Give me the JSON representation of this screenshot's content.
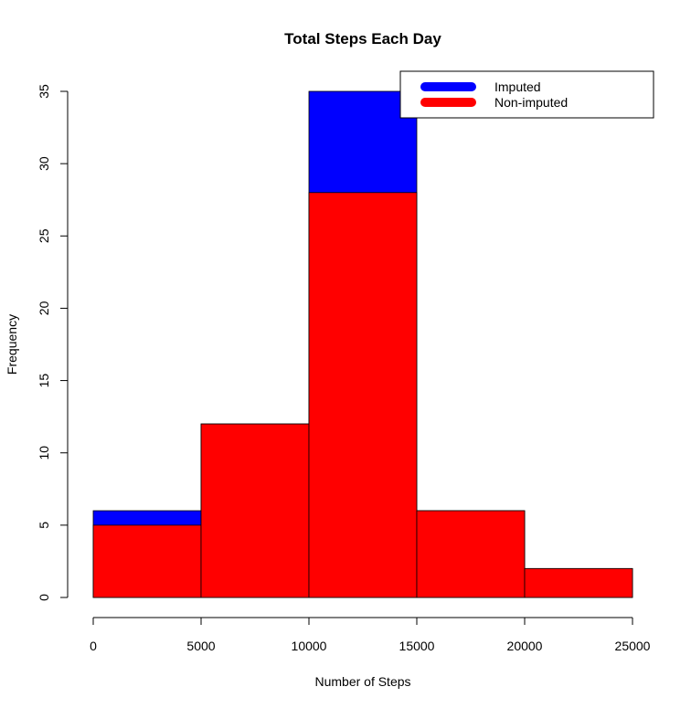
{
  "chart_data": {
    "type": "bar",
    "title": "Total Steps Each Day",
    "xlabel": "Number of Steps",
    "ylabel": "Frequency",
    "bins": [
      [
        0,
        5000
      ],
      [
        5000,
        10000
      ],
      [
        10000,
        15000
      ],
      [
        15000,
        20000
      ],
      [
        20000,
        25000
      ]
    ],
    "x_ticks": [
      0,
      5000,
      10000,
      15000,
      20000,
      25000
    ],
    "y_ticks": [
      0,
      5,
      10,
      15,
      20,
      25,
      30,
      35
    ],
    "xlim": [
      0,
      25000
    ],
    "ylim": [
      0,
      35
    ],
    "grid": false,
    "legend_position": "top-right",
    "series": [
      {
        "name": "Imputed",
        "color": "#0000ff",
        "values": [
          6,
          12,
          35,
          6,
          2
        ]
      },
      {
        "name": "Non-imputed",
        "color": "#ff0000",
        "values": [
          5,
          12,
          28,
          6,
          2
        ]
      }
    ]
  }
}
